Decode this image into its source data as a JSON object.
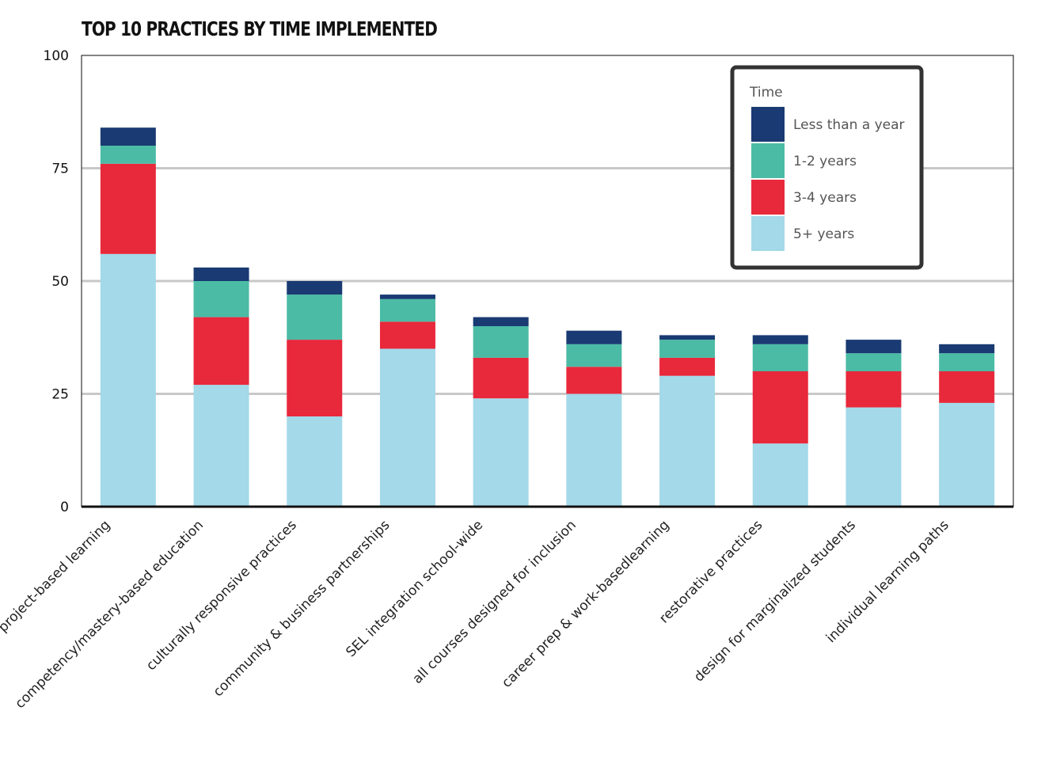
{
  "chart_data": {
    "type": "bar",
    "stacked": true,
    "title": "TOP 10 PRACTICES BY TIME IMPLEMENTED",
    "xlabel": "",
    "ylabel": "",
    "ylim": [
      0,
      100
    ],
    "yticks": [
      0,
      25,
      50,
      75,
      100
    ],
    "grid": true,
    "legend": {
      "title": "Time",
      "position": "top-right"
    },
    "categories": [
      "project-based learning",
      "competency/mastery-based education",
      "culturally responsive practices",
      "community & business partnerships",
      "SEL integration school-wide",
      "all courses designed for inclusion",
      "career prep & work-basedlearning",
      "restorative practices",
      "design for marginalized students",
      "individual learning paths"
    ],
    "series": [
      {
        "name": "5+ years",
        "color": "#a3d9e9",
        "values": [
          56,
          27,
          20,
          35,
          24,
          25,
          29,
          14,
          22,
          23
        ]
      },
      {
        "name": "3-4 years",
        "color": "#e8293b",
        "values": [
          20,
          15,
          17,
          6,
          9,
          6,
          4,
          16,
          8,
          7
        ]
      },
      {
        "name": "1-2 years",
        "color": "#4bbba5",
        "values": [
          4,
          8,
          10,
          5,
          7,
          5,
          4,
          6,
          4,
          4
        ]
      },
      {
        "name": "Less than a year",
        "color": "#193a72",
        "values": [
          4,
          3,
          3,
          1,
          2,
          3,
          1,
          2,
          3,
          2
        ]
      }
    ],
    "legend_order": [
      "Less than a year",
      "1-2 years",
      "3-4 years",
      "5+ years"
    ]
  }
}
